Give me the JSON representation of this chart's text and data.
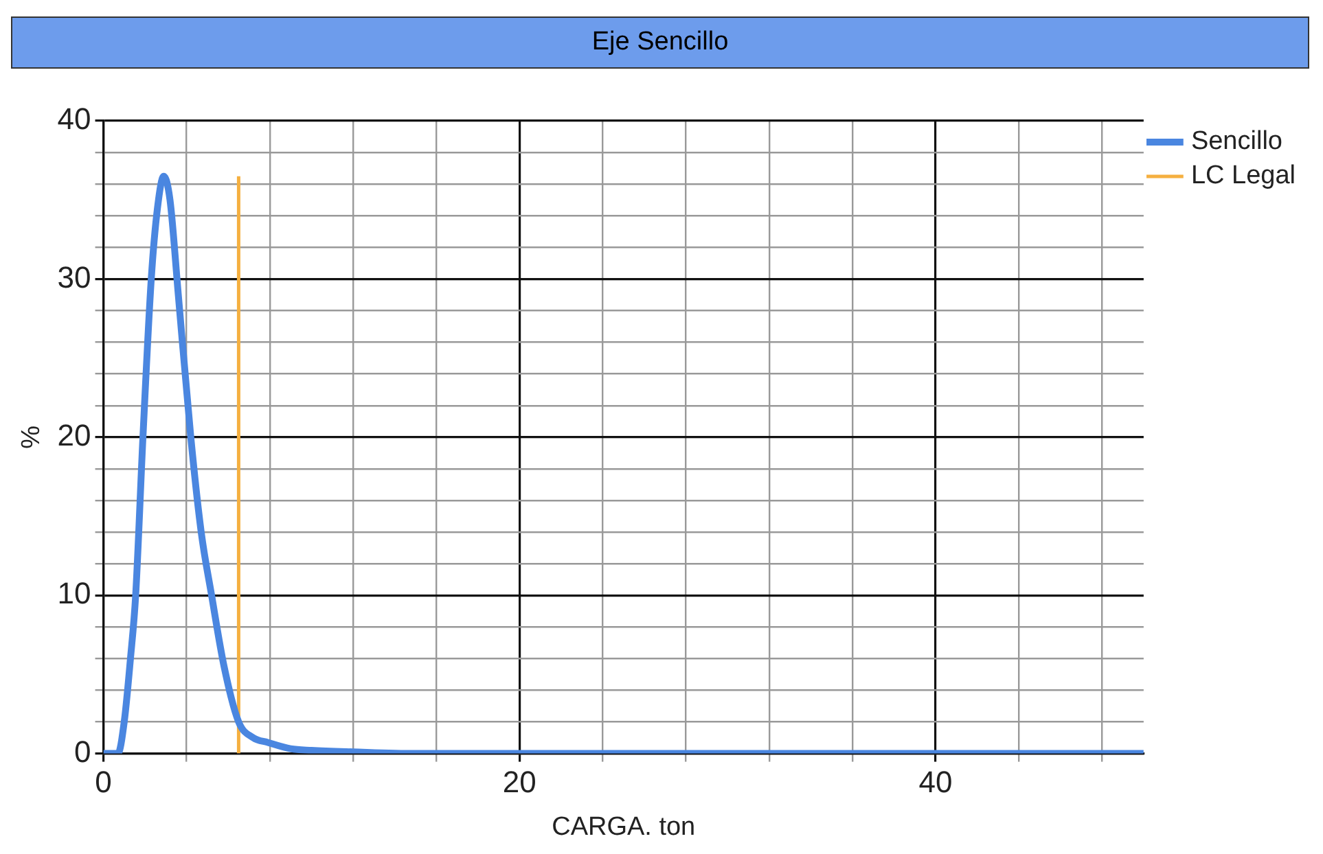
{
  "chart_data": {
    "type": "line",
    "title": "Eje Sencillo",
    "xlabel": "CARGA. ton",
    "ylabel": "%",
    "xlim": [
      0,
      50
    ],
    "xticks": [
      0,
      {
        "value": 4,
        "label": null
      },
      {
        "value": 8,
        "label": null
      },
      {
        "value": 12,
        "label": null
      },
      {
        "value": 16,
        "label": null
      },
      20,
      {
        "value": 24,
        "label": null
      },
      {
        "value": 28,
        "label": null
      },
      {
        "value": 32,
        "label": null
      },
      {
        "value": 36,
        "label": null
      },
      40,
      {
        "value": 44,
        "label": null
      },
      {
        "value": 48,
        "label": null
      }
    ],
    "ylim": [
      0,
      40
    ],
    "yticks": [
      0,
      {
        "value": 2,
        "label": null
      },
      {
        "value": 4,
        "label": null
      },
      {
        "value": 6,
        "label": null
      },
      {
        "value": 8,
        "label": null
      },
      10,
      {
        "value": 12,
        "label": null
      },
      {
        "value": 14,
        "label": null
      },
      {
        "value": 16,
        "label": null
      },
      {
        "value": 18,
        "label": null
      },
      20,
      {
        "value": 22,
        "label": null
      },
      {
        "value": 24,
        "label": null
      },
      {
        "value": 26,
        "label": null
      },
      {
        "value": 28,
        "label": null
      },
      30,
      {
        "value": 32,
        "label": null
      },
      {
        "value": 34,
        "label": null
      },
      {
        "value": 36,
        "label": null
      },
      {
        "value": 38,
        "label": null
      },
      40
    ],
    "grid": true,
    "legend": "top right",
    "marker": "none",
    "series": [
      {
        "name": "Sencillo",
        "color": "#4a86e0",
        "x": [
          0,
          0.7,
          1.0,
          1.3,
          1.55,
          1.9,
          2.3,
          2.6,
          2.9,
          3.2,
          3.6,
          4.2,
          4.7,
          5.2,
          5.8,
          6.5,
          7.2,
          7.9,
          9,
          10,
          12,
          15,
          50
        ],
        "values": [
          0,
          0,
          2,
          6,
          10,
          20,
          30,
          34.5,
          36.5,
          35,
          29,
          20,
          14,
          10,
          5.5,
          2,
          1.0,
          0.7,
          0.3,
          0.2,
          0.1,
          0,
          0
        ]
      },
      {
        "name": "LC Legal",
        "color": "#f5b040",
        "x": [
          6.5,
          6.5
        ],
        "values": [
          0,
          36.5
        ]
      }
    ]
  }
}
